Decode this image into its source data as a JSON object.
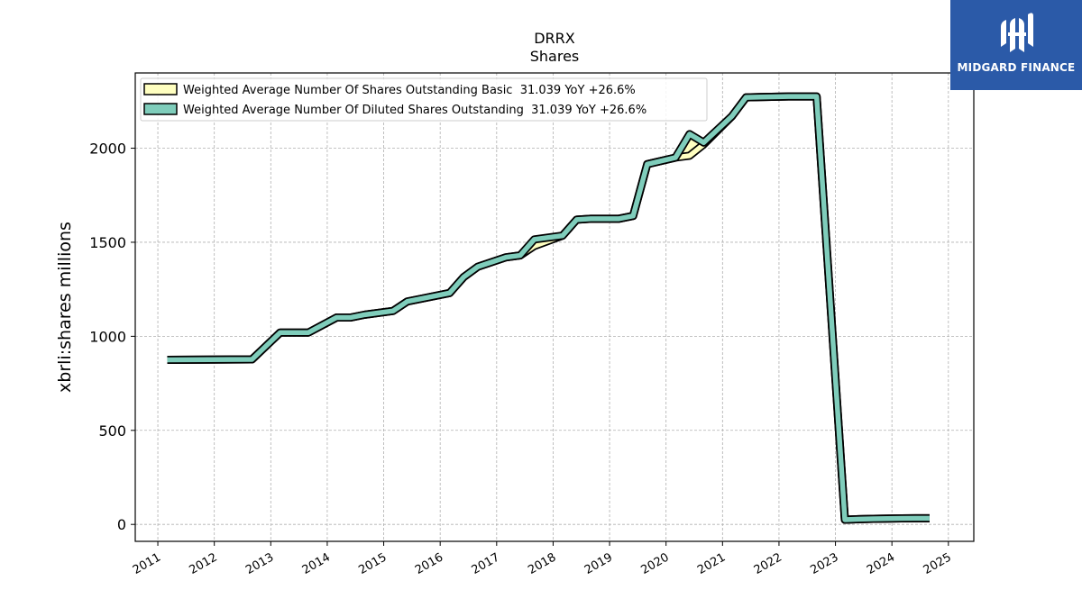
{
  "logo": {
    "text": "MIDGARD FINANCE",
    "bg_color": "#2b5aa8",
    "icon": "midgard-logo-icon"
  },
  "chart_data": {
    "type": "line",
    "title": "DRRX",
    "subtitle": "Shares",
    "xlabel": "",
    "ylabel": "xbrli:shares millions",
    "xlim": [
      2010.6,
      2025.45
    ],
    "ylim": [
      -90,
      2400
    ],
    "yticks": [
      0,
      500,
      1000,
      1500,
      2000
    ],
    "xticks": [
      "2011",
      "2012",
      "2013",
      "2014",
      "2015",
      "2016",
      "2017",
      "2018",
      "2019",
      "2020",
      "2021",
      "2022",
      "2023",
      "2024",
      "2025"
    ],
    "grid": true,
    "legend_position": "top-left",
    "series": [
      {
        "name": "Weighted Average Number Of Shares Outstanding Basic  31.039 YoY +26.6%",
        "color": "#ffffc0",
        "x": [
          "2011-03",
          "2012-09",
          "2013-03",
          "2013-09",
          "2014-03",
          "2014-06",
          "2014-09",
          "2015-03",
          "2015-06",
          "2015-09",
          "2016-03",
          "2016-06",
          "2016-09",
          "2017-03",
          "2017-06",
          "2017-09",
          "2018-03",
          "2018-06",
          "2018-09",
          "2019-03",
          "2019-06",
          "2019-09",
          "2020-03",
          "2020-06",
          "2020-09",
          "2021-03",
          "2021-06",
          "2021-09",
          "2022-03",
          "2022-09",
          "2023-03",
          "2023-06",
          "2023-09",
          "2024-03",
          "2024-06",
          "2024-09"
        ],
        "values": [
          875,
          877,
          1020,
          1020,
          1100,
          1100,
          1115,
          1135,
          1185,
          1200,
          1230,
          1315,
          1370,
          1420,
          1430,
          1480,
          1535,
          1620,
          1625,
          1625,
          1640,
          1915,
          1950,
          1960,
          2020,
          2170,
          2270,
          2272,
          2275,
          2275,
          25,
          28,
          30,
          32,
          33,
          33
        ]
      },
      {
        "name": "Weighted Average Number Of Diluted Shares Outstanding  31.039 YoY +26.6%",
        "color": "#7fcdbb",
        "x": [
          "2011-03",
          "2012-09",
          "2013-03",
          "2013-09",
          "2014-03",
          "2014-06",
          "2014-09",
          "2015-03",
          "2015-06",
          "2015-09",
          "2016-03",
          "2016-06",
          "2016-09",
          "2017-03",
          "2017-06",
          "2017-09",
          "2018-03",
          "2018-06",
          "2018-09",
          "2019-03",
          "2019-06",
          "2019-09",
          "2020-03",
          "2020-06",
          "2020-09",
          "2021-03",
          "2021-06",
          "2021-09",
          "2022-03",
          "2022-09",
          "2023-03",
          "2023-06",
          "2023-09",
          "2024-03",
          "2024-06",
          "2024-09"
        ],
        "values": [
          875,
          877,
          1020,
          1020,
          1100,
          1100,
          1115,
          1135,
          1185,
          1200,
          1230,
          1315,
          1370,
          1420,
          1430,
          1515,
          1535,
          1620,
          1625,
          1625,
          1640,
          1915,
          1950,
          2075,
          2030,
          2170,
          2270,
          2272,
          2275,
          2275,
          25,
          28,
          30,
          32,
          33,
          33
        ]
      }
    ]
  }
}
